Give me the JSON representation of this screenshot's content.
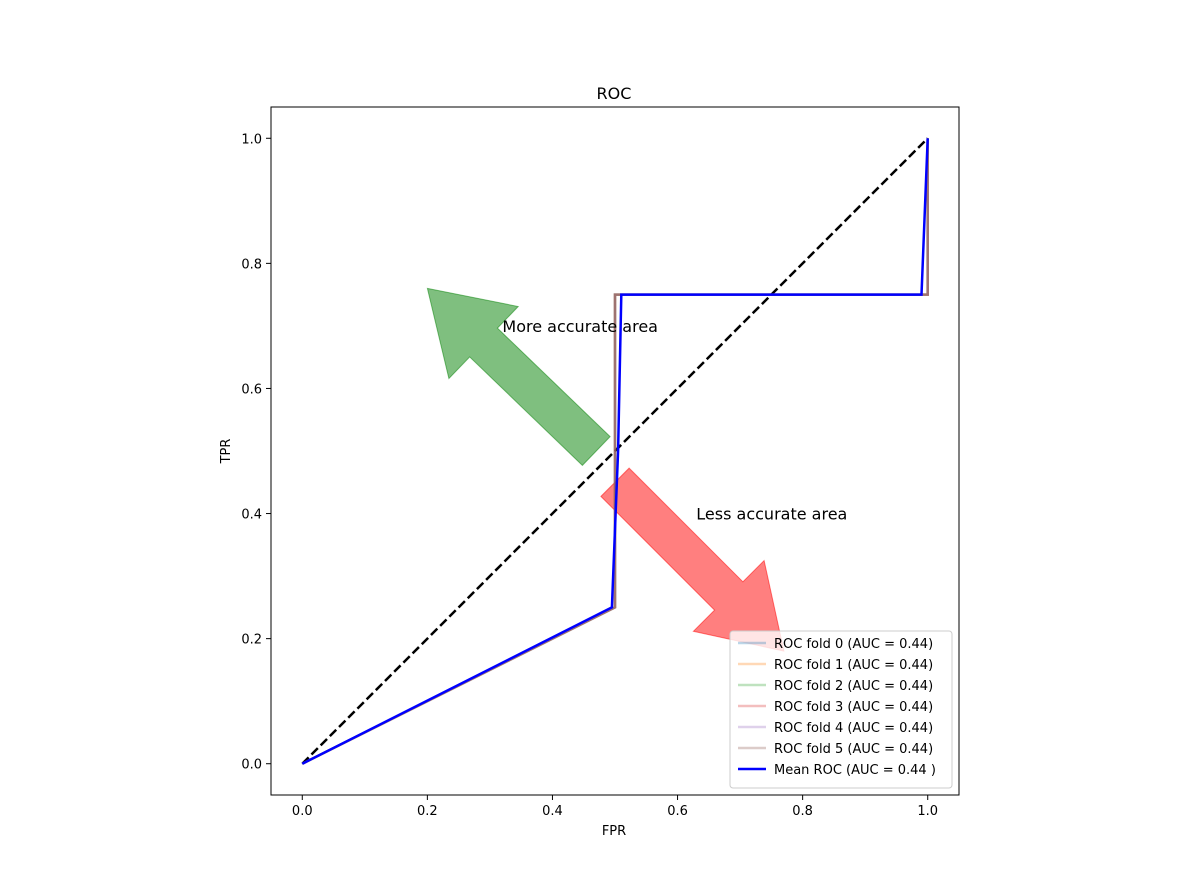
{
  "chart_data": {
    "type": "line",
    "title": "ROC",
    "xlabel": "FPR",
    "ylabel": "TPR",
    "xlim": [
      -0.05,
      1.05
    ],
    "ylim": [
      -0.05,
      1.05
    ],
    "xticks": [
      0.0,
      0.2,
      0.4,
      0.6,
      0.8,
      1.0
    ],
    "yticks": [
      0.0,
      0.2,
      0.4,
      0.6,
      0.8,
      1.0
    ],
    "xtick_labels": [
      "0.0",
      "0.2",
      "0.4",
      "0.6",
      "0.8",
      "1.0"
    ],
    "ytick_labels": [
      "0.0",
      "0.2",
      "0.4",
      "0.6",
      "0.8",
      "1.0"
    ],
    "grid": false,
    "legend_position": "lower-right",
    "series": [
      {
        "name": "ROC fold 0 (AUC = 0.44)",
        "color": "#1f77b4",
        "opacity": 0.3,
        "width": 2.5,
        "x": [
          0,
          0.5,
          0.5,
          1.0,
          1.0
        ],
        "y": [
          0,
          0.25,
          0.75,
          0.75,
          1.0
        ]
      },
      {
        "name": "ROC fold 1 (AUC = 0.44)",
        "color": "#ff7f0e",
        "opacity": 0.3,
        "width": 2.5,
        "x": [
          0,
          0.5,
          0.5,
          1.0,
          1.0
        ],
        "y": [
          0,
          0.25,
          0.75,
          0.75,
          1.0
        ]
      },
      {
        "name": "ROC fold 2 (AUC = 0.44)",
        "color": "#2ca02c",
        "opacity": 0.3,
        "width": 2.5,
        "x": [
          0,
          0.5,
          0.5,
          1.0,
          1.0
        ],
        "y": [
          0,
          0.25,
          0.75,
          0.75,
          1.0
        ]
      },
      {
        "name": "ROC fold 3 (AUC = 0.44)",
        "color": "#d62728",
        "opacity": 0.3,
        "width": 2.5,
        "x": [
          0,
          0.5,
          0.5,
          1.0,
          1.0
        ],
        "y": [
          0,
          0.25,
          0.75,
          0.75,
          1.0
        ]
      },
      {
        "name": "ROC fold 4 (AUC = 0.44)",
        "color": "#9467bd",
        "opacity": 0.3,
        "width": 2.5,
        "x": [
          0,
          0.5,
          0.5,
          1.0,
          1.0
        ],
        "y": [
          0,
          0.25,
          0.75,
          0.75,
          1.0
        ]
      },
      {
        "name": "ROC fold 5 (AUC = 0.44)",
        "color": "#8c564b",
        "opacity": 0.3,
        "width": 2.5,
        "x": [
          0,
          0.5,
          0.5,
          1.0,
          1.0
        ],
        "y": [
          0,
          0.25,
          0.75,
          0.75,
          1.0
        ]
      },
      {
        "name": "Mean ROC (AUC = 0.44 )",
        "color": "#0000ff",
        "opacity": 1.0,
        "width": 2.5,
        "x": [
          0,
          0.495,
          0.505,
          0.51,
          0.99,
          1.0
        ],
        "y": [
          0,
          0.25,
          0.5,
          0.75,
          0.75,
          1.0
        ]
      }
    ],
    "diagonal": {
      "x": [
        0,
        1
      ],
      "y": [
        0,
        1
      ],
      "color": "#000000",
      "dash": true
    },
    "annotations": [
      {
        "text": "More accurate area",
        "x": 0.32,
        "y": 0.7,
        "arrow_color": "#008000",
        "arrow_from": [
          0.47,
          0.5
        ],
        "arrow_to": [
          0.2,
          0.76
        ]
      },
      {
        "text": "Less accurate area",
        "x": 0.63,
        "y": 0.4,
        "arrow_color": "#ff0000",
        "arrow_from": [
          0.5,
          0.45
        ],
        "arrow_to": [
          0.77,
          0.18
        ]
      }
    ]
  }
}
